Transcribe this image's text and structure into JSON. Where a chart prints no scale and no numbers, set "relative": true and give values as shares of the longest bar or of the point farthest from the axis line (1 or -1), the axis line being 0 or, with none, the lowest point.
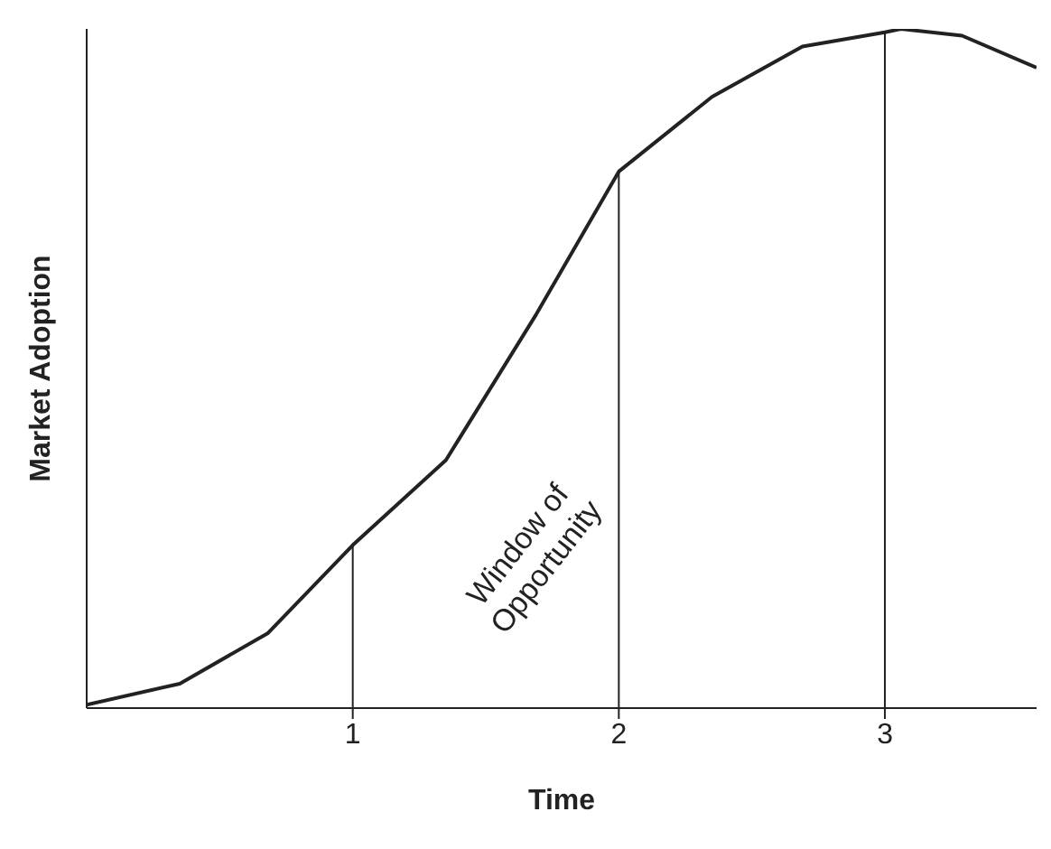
{
  "chart_data": {
    "type": "line",
    "xlabel": "Time",
    "ylabel": "Market Adoption",
    "relative": true,
    "x": [
      0,
      0.35,
      0.68,
      1,
      1.35,
      1.69,
      2,
      2.35,
      2.69,
      3,
      3.06,
      3.29,
      3.57
    ],
    "series": [
      {
        "color": "#222222",
        "values": [
          0.005,
          0.036,
          0.11,
          0.24,
          0.365,
          0.58,
          0.79,
          0.9,
          0.974,
          0.995,
          1,
          0.99,
          0.943
        ]
      }
    ],
    "xlim": [
      0,
      3.57
    ],
    "xticks": [
      1,
      2,
      3
    ],
    "ref_lines": [
      {
        "axis": "x",
        "value": 1,
        "color": "#222222"
      },
      {
        "axis": "x",
        "value": 2,
        "color": "#222222"
      },
      {
        "axis": "x",
        "value": 3,
        "color": "#222222"
      }
    ],
    "annotations": [
      "Window of Opportunity"
    ],
    "grid": false,
    "legend": false,
    "marker": "none",
    "line_style": "solid"
  }
}
